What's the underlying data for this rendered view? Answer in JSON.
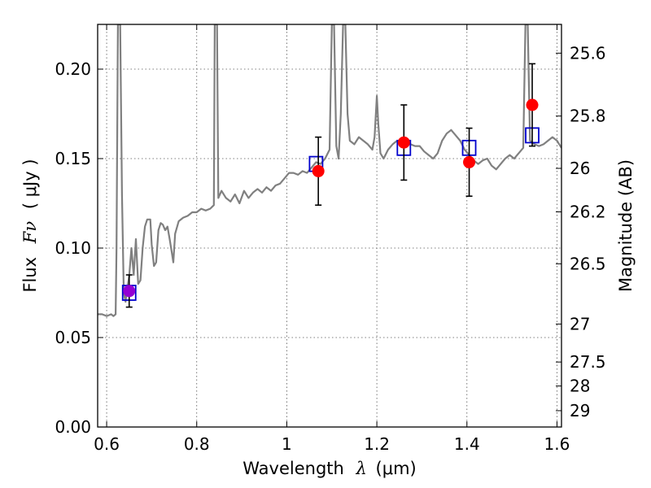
{
  "chart_data": {
    "type": "scatter",
    "xlabel_prefix": "Wavelength",
    "xlabel_symbol": "λ",
    "xlabel_unit": "(μm)",
    "ylabel_prefix": "Flux",
    "ylabel_symbol": "Fν",
    "ylabel_unit": "( μJy )",
    "y2label": "Magnitude (AB)",
    "xlim": [
      0.58,
      1.61
    ],
    "ylim": [
      0.0,
      0.225
    ],
    "grid": true,
    "x_ticks": [
      0.6,
      0.8,
      1.0,
      1.2,
      1.4,
      1.6
    ],
    "x_tick_labels": [
      "0.6",
      "0.8",
      "1",
      "1.2",
      "1.4",
      "1.6"
    ],
    "y_ticks": [
      0.0,
      0.05,
      0.1,
      0.15,
      0.2
    ],
    "y_tick_labels": [
      "0.00",
      "0.05",
      "0.10",
      "0.15",
      "0.20"
    ],
    "mag_ticks": [
      25.6,
      25.8,
      26,
      26.2,
      26.5,
      27,
      27.5,
      28,
      29
    ],
    "mag_tick_labels": [
      "25.6",
      "25.8",
      "26",
      "26.2",
      "26.5",
      "27",
      "27.5",
      "28",
      "29"
    ],
    "colors": {
      "model": "#808080",
      "observed": "#ff0000",
      "observed_first": "#9400d3",
      "model_band": "#0000cc",
      "errorbar": "#000000",
      "grid": "#555555"
    },
    "observed": [
      {
        "x": 0.65,
        "y": 0.076,
        "err": 0.009
      },
      {
        "x": 1.07,
        "y": 0.143,
        "err": 0.019
      },
      {
        "x": 1.26,
        "y": 0.159,
        "err": 0.021
      },
      {
        "x": 1.405,
        "y": 0.148,
        "err": 0.019
      },
      {
        "x": 1.545,
        "y": 0.18,
        "err": 0.023
      }
    ],
    "model_band_points": [
      {
        "x": 0.65,
        "y": 0.075
      },
      {
        "x": 1.065,
        "y": 0.147
      },
      {
        "x": 1.26,
        "y": 0.156
      },
      {
        "x": 1.405,
        "y": 0.156
      },
      {
        "x": 1.545,
        "y": 0.163
      }
    ],
    "model_spectrum": [
      [
        0.58,
        0.063
      ],
      [
        0.59,
        0.063
      ],
      [
        0.6,
        0.062
      ],
      [
        0.61,
        0.063
      ],
      [
        0.615,
        0.062
      ],
      [
        0.62,
        0.063
      ],
      [
        0.622,
        0.1
      ],
      [
        0.625,
        0.225
      ],
      [
        0.63,
        0.225
      ],
      [
        0.634,
        0.13
      ],
      [
        0.638,
        0.075
      ],
      [
        0.642,
        0.07
      ],
      [
        0.646,
        0.078
      ],
      [
        0.65,
        0.084
      ],
      [
        0.655,
        0.1
      ],
      [
        0.66,
        0.085
      ],
      [
        0.665,
        0.105
      ],
      [
        0.67,
        0.08
      ],
      [
        0.675,
        0.082
      ],
      [
        0.68,
        0.1
      ],
      [
        0.685,
        0.112
      ],
      [
        0.69,
        0.116
      ],
      [
        0.697,
        0.116
      ],
      [
        0.7,
        0.102
      ],
      [
        0.705,
        0.09
      ],
      [
        0.71,
        0.092
      ],
      [
        0.715,
        0.11
      ],
      [
        0.72,
        0.114
      ],
      [
        0.725,
        0.113
      ],
      [
        0.73,
        0.11
      ],
      [
        0.735,
        0.112
      ],
      [
        0.74,
        0.105
      ],
      [
        0.745,
        0.097
      ],
      [
        0.748,
        0.092
      ],
      [
        0.752,
        0.108
      ],
      [
        0.76,
        0.115
      ],
      [
        0.77,
        0.117
      ],
      [
        0.78,
        0.118
      ],
      [
        0.79,
        0.12
      ],
      [
        0.8,
        0.12
      ],
      [
        0.81,
        0.122
      ],
      [
        0.82,
        0.121
      ],
      [
        0.83,
        0.122
      ],
      [
        0.838,
        0.124
      ],
      [
        0.84,
        0.225
      ],
      [
        0.845,
        0.225
      ],
      [
        0.848,
        0.128
      ],
      [
        0.855,
        0.132
      ],
      [
        0.865,
        0.128
      ],
      [
        0.875,
        0.126
      ],
      [
        0.885,
        0.13
      ],
      [
        0.895,
        0.125
      ],
      [
        0.905,
        0.132
      ],
      [
        0.915,
        0.128
      ],
      [
        0.925,
        0.131
      ],
      [
        0.935,
        0.133
      ],
      [
        0.945,
        0.131
      ],
      [
        0.955,
        0.134
      ],
      [
        0.965,
        0.132
      ],
      [
        0.975,
        0.135
      ],
      [
        0.985,
        0.136
      ],
      [
        0.995,
        0.139
      ],
      [
        1.005,
        0.142
      ],
      [
        1.015,
        0.142
      ],
      [
        1.025,
        0.141
      ],
      [
        1.035,
        0.143
      ],
      [
        1.045,
        0.142
      ],
      [
        1.055,
        0.145
      ],
      [
        1.065,
        0.148
      ],
      [
        1.075,
        0.147
      ],
      [
        1.085,
        0.15
      ],
      [
        1.095,
        0.155
      ],
      [
        1.1,
        0.225
      ],
      [
        1.105,
        0.225
      ],
      [
        1.11,
        0.157
      ],
      [
        1.115,
        0.15
      ],
      [
        1.12,
        0.175
      ],
      [
        1.125,
        0.225
      ],
      [
        1.13,
        0.225
      ],
      [
        1.135,
        0.175
      ],
      [
        1.14,
        0.16
      ],
      [
        1.15,
        0.158
      ],
      [
        1.16,
        0.162
      ],
      [
        1.17,
        0.16
      ],
      [
        1.18,
        0.158
      ],
      [
        1.19,
        0.155
      ],
      [
        1.195,
        0.162
      ],
      [
        1.2,
        0.185
      ],
      [
        1.203,
        0.17
      ],
      [
        1.208,
        0.153
      ],
      [
        1.215,
        0.15
      ],
      [
        1.225,
        0.155
      ],
      [
        1.235,
        0.158
      ],
      [
        1.245,
        0.16
      ],
      [
        1.255,
        0.158
      ],
      [
        1.265,
        0.16
      ],
      [
        1.275,
        0.158
      ],
      [
        1.285,
        0.157
      ],
      [
        1.295,
        0.157
      ],
      [
        1.305,
        0.154
      ],
      [
        1.315,
        0.152
      ],
      [
        1.325,
        0.15
      ],
      [
        1.335,
        0.153
      ],
      [
        1.345,
        0.16
      ],
      [
        1.355,
        0.164
      ],
      [
        1.365,
        0.166
      ],
      [
        1.375,
        0.163
      ],
      [
        1.385,
        0.16
      ],
      [
        1.395,
        0.155
      ],
      [
        1.405,
        0.152
      ],
      [
        1.415,
        0.149
      ],
      [
        1.425,
        0.147
      ],
      [
        1.435,
        0.149
      ],
      [
        1.445,
        0.15
      ],
      [
        1.455,
        0.146
      ],
      [
        1.465,
        0.144
      ],
      [
        1.475,
        0.147
      ],
      [
        1.485,
        0.15
      ],
      [
        1.495,
        0.152
      ],
      [
        1.505,
        0.15
      ],
      [
        1.515,
        0.153
      ],
      [
        1.525,
        0.156
      ],
      [
        1.53,
        0.225
      ],
      [
        1.535,
        0.225
      ],
      [
        1.54,
        0.16
      ],
      [
        1.55,
        0.158
      ],
      [
        1.56,
        0.157
      ],
      [
        1.57,
        0.158
      ],
      [
        1.58,
        0.16
      ],
      [
        1.59,
        0.162
      ],
      [
        1.6,
        0.16
      ],
      [
        1.61,
        0.156
      ]
    ]
  }
}
